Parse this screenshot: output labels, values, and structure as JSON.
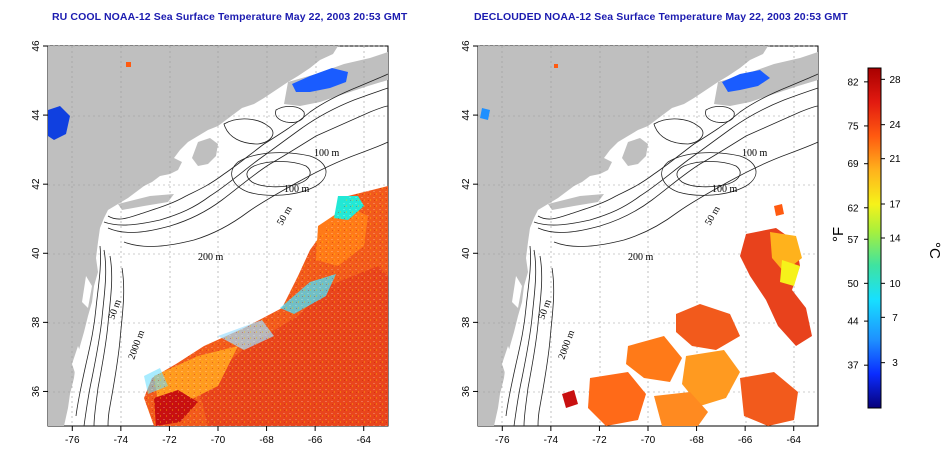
{
  "titles": {
    "left": "RU COOL NOAA-12 Sea Surface Temperature May 22, 2003 20:53 GMT",
    "right": "DECLOUDED NOAA-12 Sea Surface Temperature May 22, 2003 20:53 GMT"
  },
  "axes": {
    "lon_ticks": [
      "-76",
      "-74",
      "-72",
      "-70",
      "-68",
      "-66",
      "-64"
    ],
    "lat_ticks": [
      "46",
      "44",
      "42",
      "40",
      "38",
      "36"
    ],
    "lon_range": [
      -77.0,
      -63.0
    ],
    "lat_range": [
      35.0,
      46.0
    ]
  },
  "contour_labels": {
    "left": [
      "100 m",
      "100 m",
      "50 m",
      "200 m",
      "50 m",
      "2000 m"
    ],
    "right": [
      "100 m",
      "100 m",
      "50 m",
      "200 m",
      "50 m",
      "2000 m"
    ]
  },
  "colorbar": {
    "fahrenheit_unit": "°F",
    "celsius_unit": "°C",
    "fahrenheit_ticks": [
      "82",
      "75",
      "69",
      "62",
      "57",
      "50",
      "44",
      "37"
    ],
    "celsius_ticks": [
      "28",
      "24",
      "21",
      "17",
      "14",
      "10",
      "7",
      "3"
    ],
    "colors": [
      "#08007a",
      "#0a2cff",
      "#1e90ff",
      "#17e0ff",
      "#3fe3a0",
      "#a8f03c",
      "#f6f21a",
      "#ffb21c",
      "#ff5a10",
      "#e21a10",
      "#a80000"
    ]
  }
}
